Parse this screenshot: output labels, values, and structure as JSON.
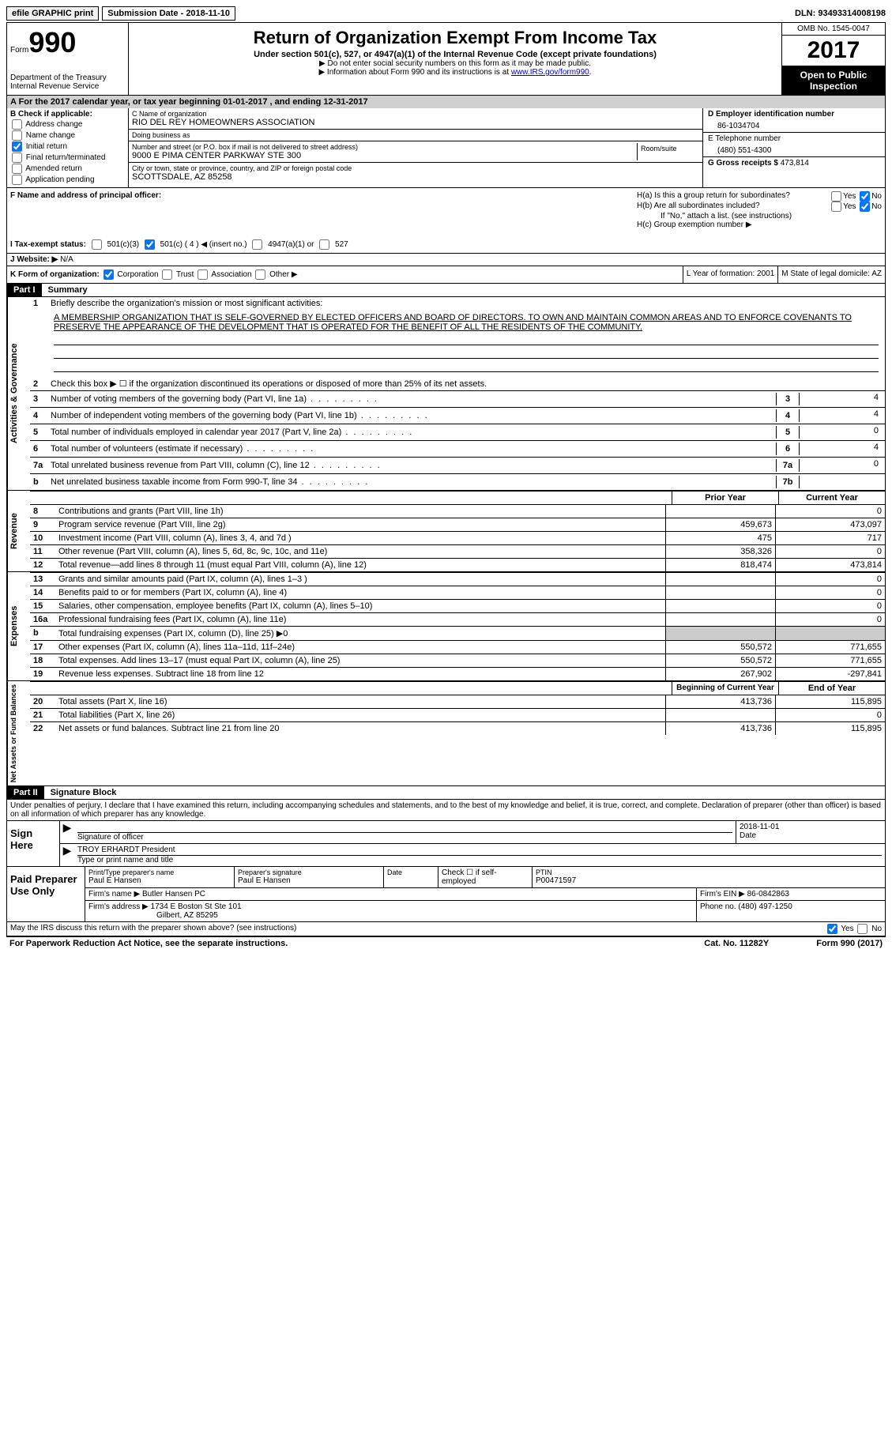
{
  "topbar": {
    "efile": "efile GRAPHIC print",
    "submission": "Submission Date - 2018-11-10",
    "dln": "DLN: 93493314008198"
  },
  "header": {
    "form_label": "Form",
    "form_num": "990",
    "dept": "Department of the Treasury",
    "irs": "Internal Revenue Service",
    "title": "Return of Organization Exempt From Income Tax",
    "subtitle": "Under section 501(c), 527, or 4947(a)(1) of the Internal Revenue Code (except private foundations)",
    "hint1": "▶ Do not enter social security numbers on this form as it may be made public.",
    "hint2": "▶ Information about Form 990 and its instructions is at ",
    "link": "www.IRS.gov/form990",
    "omb": "OMB No. 1545-0047",
    "year": "2017",
    "open": "Open to Public Inspection"
  },
  "rowA": "A  For the 2017 calendar year, or tax year beginning 01-01-2017   , and ending 12-31-2017",
  "colB": {
    "title": "B Check if applicable:",
    "items": [
      "Address change",
      "Name change",
      "Initial return",
      "Final return/terminated",
      "Amended return",
      "Application pending"
    ],
    "checked_idx": 2
  },
  "colC": {
    "name_lbl": "C Name of organization",
    "name": "RIO DEL REY HOMEOWNERS ASSOCIATION",
    "dba_lbl": "Doing business as",
    "dba": "",
    "street_lbl": "Number and street (or P.O. box if mail is not delivered to street address)",
    "street": "9000 E PIMA CENTER PARKWAY STE 300",
    "room_lbl": "Room/suite",
    "city_lbl": "City or town, state or province, country, and ZIP or foreign postal code",
    "city": "SCOTTSDALE, AZ  85258",
    "f_lbl": "F Name and address of principal officer:",
    "f_val": ""
  },
  "colD": {
    "ein_lbl": "D Employer identification number",
    "ein": "86-1034704",
    "phone_lbl": "E Telephone number",
    "phone": "(480) 551-4300",
    "gross_lbl": "G Gross receipts $",
    "gross": "473,814"
  },
  "colH": {
    "ha": "H(a)  Is this a group return for subordinates?",
    "hb": "H(b)  Are all subordinates included?",
    "hb_note": "If \"No,\" attach a list. (see instructions)",
    "hc": "H(c)  Group exemption number ▶",
    "ha_no": true,
    "hb_no": true
  },
  "rowI": {
    "label": "I  Tax-exempt status:",
    "opts": [
      "501(c)(3)",
      "501(c) ( 4 ) ◀ (insert no.)",
      "4947(a)(1) or",
      "527"
    ],
    "checked_idx": 1
  },
  "rowJ": {
    "label": "J  Website: ▶",
    "val": "N/A"
  },
  "rowK": {
    "label": "K Form of organization:",
    "opts": [
      "Corporation",
      "Trust",
      "Association",
      "Other ▶"
    ],
    "checked_idx": 0,
    "l_label": "L Year of formation: 2001",
    "m_label": "M State of legal domicile: AZ"
  },
  "part1_title": "Part I",
  "summary_title": "Summary",
  "sections": {
    "gov": {
      "label": "Activities & Governance",
      "line1_lbl": "Briefly describe the organization's mission or most significant activities:",
      "mission": "A MEMBERSHIP ORGANIZATION THAT IS SELF-GOVERNED BY ELECTED OFFICERS AND BOARD OF DIRECTORS. TO OWN AND MAINTAIN COMMON AREAS AND TO ENFORCE COVENANTS TO PRESERVE THE APPEARANCE OF THE DEVELOPMENT THAT IS OPERATED FOR THE BENEFIT OF ALL THE RESIDENTS OF THE COMMUNITY.",
      "line2": "Check this box ▶ ☐  if the organization discontinued its operations or disposed of more than 25% of its net assets.",
      "lines": [
        {
          "n": "3",
          "d": "Number of voting members of the governing body (Part VI, line 1a)",
          "box": "3",
          "v": "4"
        },
        {
          "n": "4",
          "d": "Number of independent voting members of the governing body (Part VI, line 1b)",
          "box": "4",
          "v": "4"
        },
        {
          "n": "5",
          "d": "Total number of individuals employed in calendar year 2017 (Part V, line 2a)",
          "box": "5",
          "v": "0"
        },
        {
          "n": "6",
          "d": "Total number of volunteers (estimate if necessary)",
          "box": "6",
          "v": "4"
        },
        {
          "n": "7a",
          "d": "Total unrelated business revenue from Part VIII, column (C), line 12",
          "box": "7a",
          "v": "0"
        },
        {
          "n": "b",
          "d": "Net unrelated business taxable income from Form 990-T, line 34",
          "box": "7b",
          "v": ""
        }
      ]
    },
    "rev": {
      "label": "Revenue",
      "prior": "Prior Year",
      "current": "Current Year",
      "lines": [
        {
          "n": "8",
          "d": "Contributions and grants (Part VIII, line 1h)",
          "p": "",
          "c": "0"
        },
        {
          "n": "9",
          "d": "Program service revenue (Part VIII, line 2g)",
          "p": "459,673",
          "c": "473,097"
        },
        {
          "n": "10",
          "d": "Investment income (Part VIII, column (A), lines 3, 4, and 7d )",
          "p": "475",
          "c": "717"
        },
        {
          "n": "11",
          "d": "Other revenue (Part VIII, column (A), lines 5, 6d, 8c, 9c, 10c, and 11e)",
          "p": "358,326",
          "c": "0"
        },
        {
          "n": "12",
          "d": "Total revenue—add lines 8 through 11 (must equal Part VIII, column (A), line 12)",
          "p": "818,474",
          "c": "473,814"
        }
      ]
    },
    "exp": {
      "label": "Expenses",
      "lines": [
        {
          "n": "13",
          "d": "Grants and similar amounts paid (Part IX, column (A), lines 1–3 )",
          "p": "",
          "c": "0"
        },
        {
          "n": "14",
          "d": "Benefits paid to or for members (Part IX, column (A), line 4)",
          "p": "",
          "c": "0"
        },
        {
          "n": "15",
          "d": "Salaries, other compensation, employee benefits (Part IX, column (A), lines 5–10)",
          "p": "",
          "c": "0"
        },
        {
          "n": "16a",
          "d": "Professional fundraising fees (Part IX, column (A), line 11e)",
          "p": "",
          "c": "0"
        },
        {
          "n": "b",
          "d": "Total fundraising expenses (Part IX, column (D), line 25) ▶0",
          "p": "grey",
          "c": "grey"
        },
        {
          "n": "17",
          "d": "Other expenses (Part IX, column (A), lines 11a–11d, 11f–24e)",
          "p": "550,572",
          "c": "771,655"
        },
        {
          "n": "18",
          "d": "Total expenses. Add lines 13–17 (must equal Part IX, column (A), line 25)",
          "p": "550,572",
          "c": "771,655"
        },
        {
          "n": "19",
          "d": "Revenue less expenses. Subtract line 18 from line 12",
          "p": "267,902",
          "c": "-297,841"
        }
      ]
    },
    "net": {
      "label": "Net Assets or Fund Balances",
      "begin": "Beginning of Current Year",
      "end": "End of Year",
      "lines": [
        {
          "n": "20",
          "d": "Total assets (Part X, line 16)",
          "p": "413,736",
          "c": "115,895"
        },
        {
          "n": "21",
          "d": "Total liabilities (Part X, line 26)",
          "p": "",
          "c": "0"
        },
        {
          "n": "22",
          "d": "Net assets or fund balances. Subtract line 21 from line 20",
          "p": "413,736",
          "c": "115,895"
        }
      ]
    }
  },
  "part2_title": "Part II",
  "sig_title": "Signature Block",
  "sig": {
    "intro": "Under penalties of perjury, I declare that I have examined this return, including accompanying schedules and statements, and to the best of my knowledge and belief, it is true, correct, and complete. Declaration of preparer (other than officer) is based on all information of which preparer has any knowledge.",
    "sign_here": "Sign Here",
    "officer_sig_lbl": "Signature of officer",
    "date_val": "2018-11-01",
    "date_lbl": "Date",
    "officer_name": "TROY ERHARDT President",
    "officer_name_lbl": "Type or print name and title",
    "paid": "Paid Preparer Use Only",
    "prep_name_lbl": "Print/Type preparer's name",
    "prep_name": "Paul E Hansen",
    "prep_sig_lbl": "Preparer's signature",
    "prep_sig": "Paul E Hansen",
    "prep_date_lbl": "Date",
    "self_emp": "Check ☐ if self-employed",
    "ptin_lbl": "PTIN",
    "ptin": "P00471597",
    "firm_name_lbl": "Firm's name      ▶",
    "firm_name": "Butler Hansen PC",
    "firm_ein_lbl": "Firm's EIN ▶",
    "firm_ein": "86-0842863",
    "firm_addr_lbl": "Firm's address ▶",
    "firm_addr1": "1734 E Boston St Ste 101",
    "firm_addr2": "Gilbert, AZ  85295",
    "firm_phone_lbl": "Phone no.",
    "firm_phone": "(480) 497-1250",
    "discuss": "May the IRS discuss this return with the preparer shown above? (see instructions)",
    "discuss_yes": true
  },
  "footer": {
    "pra": "For Paperwork Reduction Act Notice, see the separate instructions.",
    "cat": "Cat. No. 11282Y",
    "form": "Form 990 (2017)"
  }
}
